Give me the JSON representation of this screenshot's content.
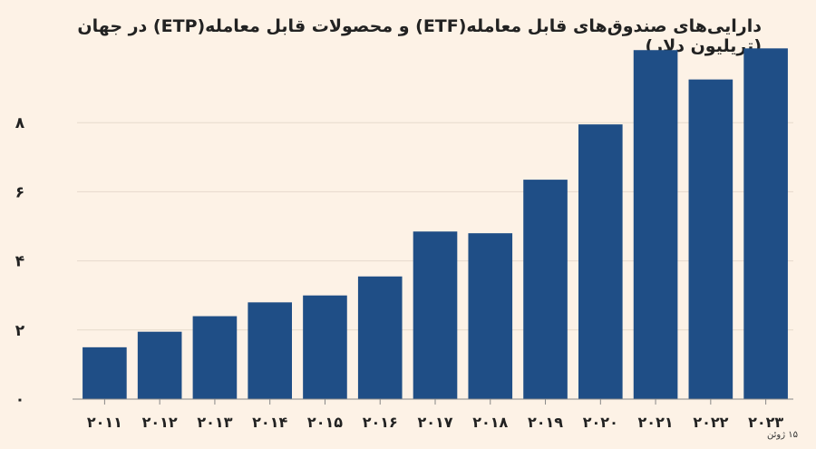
{
  "chart_data": {
    "type": "bar",
    "title": "دارایی‌های صندوق‌های قابل معامله(ETF) و محصولات قابل معامله(ETP) در جهان (تریلیون دلار)",
    "footnote": "۱۵ ژوئن",
    "categories": [
      "۲۰۱۱",
      "۲۰۱۲",
      "۲۰۱۳",
      "۲۰۱۴",
      "۲۰۱۵",
      "۲۰۱۶",
      "۲۰۱۷",
      "۲۰۱۸",
      "۲۰۱۹",
      "۲۰۲۰",
      "۲۰۲۱",
      "۲۰۲۲",
      "۲۰۲۳"
    ],
    "values": [
      1.5,
      1.95,
      2.4,
      2.8,
      3.0,
      3.55,
      4.85,
      4.8,
      6.35,
      7.95,
      10.1,
      9.25,
      10.15
    ],
    "y_ticks": [
      0,
      2,
      4,
      6,
      8
    ],
    "y_tick_labels": [
      "۰",
      "۲",
      "۴",
      "۶",
      "۸"
    ],
    "ylim": [
      0,
      10.5
    ],
    "grid": true,
    "colors": {
      "bar": "#1f4e86",
      "grid": "#e6d9cc",
      "axis": "#888888",
      "background": "#fdf2e6"
    }
  }
}
